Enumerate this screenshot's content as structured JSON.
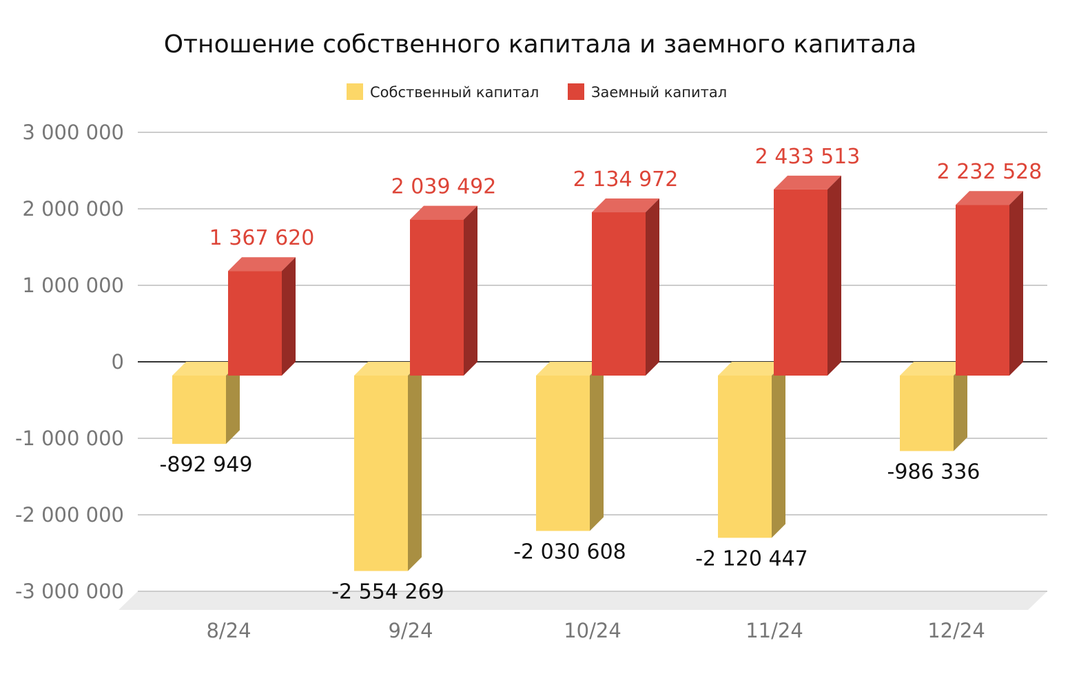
{
  "chart_data": {
    "type": "bar",
    "style": "3d-column",
    "title": "Отношение собственного капитала и заемного капитала",
    "categories": [
      "8/24",
      "9/24",
      "10/24",
      "11/24",
      "12/24"
    ],
    "series": [
      {
        "name": "Собственный капитал",
        "color": "#FCD768",
        "values": [
          -892949,
          -2554269,
          -2030608,
          -2120447,
          -986336
        ],
        "labels": [
          "-892 949",
          "-2 554 269",
          "-2 030 608",
          "-2 120 447",
          "-986 336"
        ],
        "label_color": "#111111"
      },
      {
        "name": "Заемный капитал",
        "color": "#DD4538",
        "values": [
          1367620,
          2039492,
          2134972,
          2433513,
          2232528
        ],
        "labels": [
          "1 367 620",
          "2 039 492",
          "2 134 972",
          "2 433 513",
          "2 232 528"
        ],
        "label_color": "#DD4538"
      }
    ],
    "yticks": [
      3000000,
      2000000,
      1000000,
      0,
      -1000000,
      -2000000,
      -3000000
    ],
    "ytick_labels": [
      "3 000 000",
      "2 000 000",
      "1 000 000",
      "0",
      "-1 000 000",
      "-2 000 000",
      "-3 000 000"
    ],
    "ylim": [
      -3000000,
      3000000
    ],
    "xlabel": "",
    "ylabel": "",
    "grid": true,
    "legend_position": "top-center"
  }
}
